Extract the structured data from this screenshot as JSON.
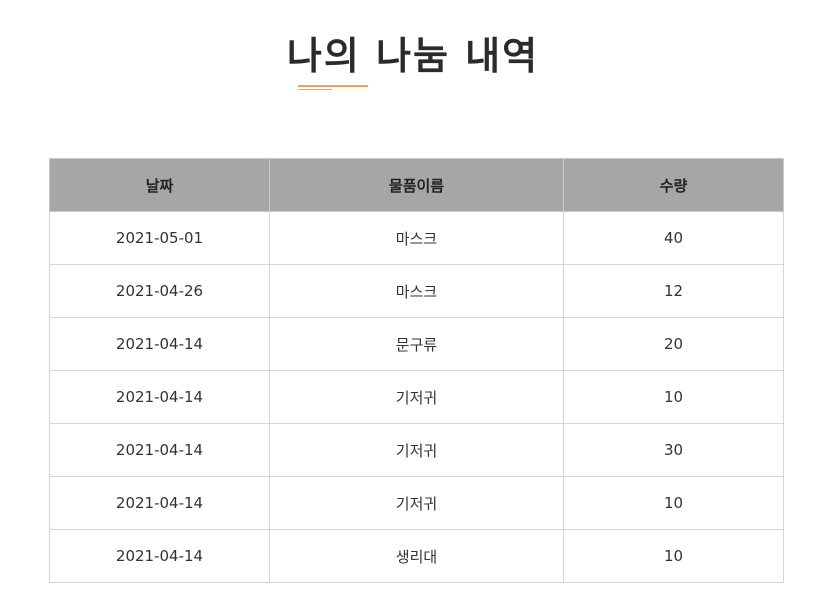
{
  "page": {
    "title": "나의 나눔 내역"
  },
  "colors": {
    "accent": "#f0a35e",
    "header_bg": "#a6a6a6",
    "border": "#d6d6d6"
  },
  "table": {
    "headers": [
      "날짜",
      "물품이름",
      "수량"
    ],
    "rows": [
      [
        "2021-05-01",
        "마스크",
        "40"
      ],
      [
        "2021-04-26",
        "마스크",
        "12"
      ],
      [
        "2021-04-14",
        "문구류",
        "20"
      ],
      [
        "2021-04-14",
        "기저귀",
        "10"
      ],
      [
        "2021-04-14",
        "기저귀",
        "30"
      ],
      [
        "2021-04-14",
        "기저귀",
        "10"
      ],
      [
        "2021-04-14",
        "생리대",
        "10"
      ]
    ]
  }
}
